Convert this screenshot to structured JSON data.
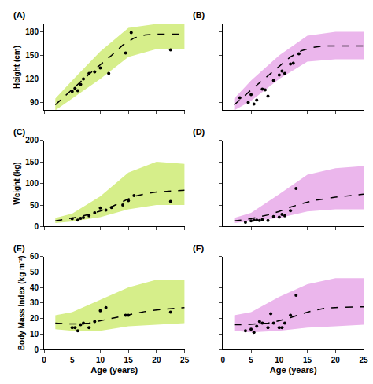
{
  "chart_data": [
    {
      "type": "scatter",
      "title": "(A)",
      "ylabel": "Height (cm)",
      "xlim": [
        0,
        25
      ],
      "xticks": [
        0,
        5,
        10,
        15,
        20,
        25
      ],
      "ylim": [
        80,
        190
      ],
      "yticks": [
        90,
        120,
        150,
        180
      ],
      "grid": false,
      "tick_labels": "y",
      "series": [
        {
          "type": "band",
          "color": "#d6ee8a",
          "x": [
            2,
            5,
            10,
            15,
            20,
            25
          ],
          "lower": [
            80,
            95,
            120,
            148,
            158,
            158
          ],
          "upper": [
            95,
            118,
            155,
            185,
            190,
            190
          ]
        },
        {
          "type": "line",
          "line_style": "dash",
          "color": "#000000",
          "x": [
            2,
            4,
            6,
            8,
            10,
            12,
            14,
            16,
            18,
            20,
            25
          ],
          "values": [
            87,
            100,
            113,
            126,
            138,
            150,
            163,
            172,
            176,
            177,
            177
          ]
        },
        {
          "type": "scatter",
          "marker": "circle",
          "color": "#000000",
          "x": [
            5,
            5.5,
            6,
            6.5,
            7,
            8,
            9,
            10,
            11.5,
            14.5,
            15.5,
            22.5
          ],
          "values": [
            104,
            108,
            105,
            113,
            120,
            127,
            129,
            134,
            127,
            153,
            179,
            157
          ]
        }
      ]
    },
    {
      "type": "scatter",
      "title": "(B)",
      "xlim": [
        0,
        25
      ],
      "xticks": [
        0,
        5,
        10,
        15,
        20,
        25
      ],
      "ylim": [
        80,
        190
      ],
      "yticks": [
        90,
        120,
        150,
        180
      ],
      "grid": false,
      "tick_labels": false,
      "series": [
        {
          "type": "band",
          "color": "#ebb6ec",
          "x": [
            2,
            5,
            10,
            15,
            20,
            25
          ],
          "lower": [
            80,
            92,
            120,
            142,
            145,
            145
          ],
          "upper": [
            95,
            118,
            150,
            175,
            180,
            180
          ]
        },
        {
          "type": "line",
          "line_style": "dash",
          "color": "#000000",
          "x": [
            2,
            4,
            6,
            8,
            10,
            12,
            14,
            16,
            18,
            20,
            25
          ],
          "values": [
            87,
            100,
            112,
            124,
            136,
            148,
            156,
            160,
            162,
            162,
            162
          ]
        },
        {
          "type": "scatter",
          "marker": "circle",
          "color": "#000000",
          "x": [
            3,
            4.5,
            5,
            5.5,
            6,
            7,
            7.5,
            8,
            9,
            10,
            10.5,
            11,
            12,
            12.5,
            13.5
          ],
          "values": [
            96,
            90,
            100,
            88,
            93,
            107,
            106,
            98,
            118,
            125,
            130,
            127,
            139,
            140,
            152
          ]
        }
      ]
    },
    {
      "type": "scatter",
      "title": "(C)",
      "ylabel": "Weight (kg)",
      "xlim": [
        0,
        25
      ],
      "xticks": [
        0,
        5,
        10,
        15,
        20,
        25
      ],
      "ylim": [
        0,
        200
      ],
      "yticks": [
        0,
        50,
        100,
        150,
        200
      ],
      "grid": false,
      "tick_labels": "y",
      "series": [
        {
          "type": "band",
          "color": "#d6ee8a",
          "x": [
            2,
            5,
            10,
            15,
            20,
            25
          ],
          "lower": [
            8,
            12,
            22,
            40,
            50,
            50
          ],
          "upper": [
            20,
            30,
            70,
            125,
            150,
            145
          ]
        },
        {
          "type": "line",
          "line_style": "dash",
          "color": "#000000",
          "x": [
            2,
            4,
            6,
            8,
            10,
            12,
            14,
            16,
            18,
            20,
            25
          ],
          "values": [
            13,
            17,
            22,
            28,
            36,
            46,
            58,
            70,
            76,
            80,
            84
          ]
        },
        {
          "type": "scatter",
          "marker": "circle",
          "color": "#000000",
          "x": [
            5,
            6,
            6.5,
            7,
            8,
            9,
            10,
            11,
            12,
            14,
            15,
            16,
            22.5
          ],
          "values": [
            18,
            15,
            19,
            21,
            25,
            32,
            43,
            38,
            44,
            50,
            60,
            72,
            58
          ]
        }
      ]
    },
    {
      "type": "scatter",
      "title": "(D)",
      "xlim": [
        0,
        25
      ],
      "xticks": [
        0,
        5,
        10,
        15,
        20,
        25
      ],
      "ylim": [
        0,
        200
      ],
      "yticks": [
        0,
        50,
        100,
        150,
        200
      ],
      "grid": false,
      "tick_labels": false,
      "series": [
        {
          "type": "band",
          "color": "#ebb6ec",
          "x": [
            2,
            5,
            10,
            15,
            20,
            25
          ],
          "lower": [
            8,
            12,
            20,
            35,
            40,
            40
          ],
          "upper": [
            20,
            32,
            75,
            120,
            135,
            140
          ]
        },
        {
          "type": "line",
          "line_style": "dash",
          "color": "#000000",
          "x": [
            2,
            4,
            6,
            8,
            10,
            12,
            14,
            16,
            18,
            20,
            25
          ],
          "values": [
            13,
            16,
            21,
            27,
            35,
            45,
            53,
            60,
            64,
            68,
            75
          ]
        },
        {
          "type": "scatter",
          "marker": "circle",
          "color": "#000000",
          "x": [
            4,
            5,
            5.5,
            6,
            6.5,
            7,
            8,
            9,
            10,
            10.5,
            11,
            12,
            13
          ],
          "values": [
            10,
            13,
            15,
            15,
            14,
            16,
            14,
            23,
            22,
            28,
            25,
            37,
            88
          ]
        }
      ]
    },
    {
      "type": "scatter",
      "title": "(E)",
      "xlabel": "Age (years)",
      "ylabel": "Body Mass Index (kg m⁻²)",
      "xlim": [
        0,
        25
      ],
      "xticks": [
        0,
        5,
        10,
        15,
        20,
        25
      ],
      "ylim": [
        0,
        60
      ],
      "yticks": [
        0,
        10,
        20,
        30,
        40,
        50,
        60
      ],
      "grid": false,
      "tick_labels": true,
      "series": [
        {
          "type": "band",
          "color": "#d6ee8a",
          "x": [
            2,
            5,
            10,
            15,
            20,
            25
          ],
          "lower": [
            13,
            12,
            12,
            15,
            16,
            17
          ],
          "upper": [
            22,
            24,
            32,
            40,
            45,
            45
          ]
        },
        {
          "type": "line",
          "line_style": "dash",
          "color": "#000000",
          "x": [
            2,
            4,
            6,
            8,
            10,
            12,
            14,
            16,
            18,
            20,
            25
          ],
          "values": [
            17,
            16.5,
            16.5,
            17,
            18.5,
            20,
            21.5,
            23,
            24.5,
            25.5,
            27
          ]
        },
        {
          "type": "scatter",
          "marker": "circle",
          "color": "#000000",
          "x": [
            5,
            5.5,
            6,
            6.5,
            7,
            8,
            9,
            10,
            11,
            14.5,
            15,
            22.5
          ],
          "values": [
            14,
            14,
            12,
            16,
            17,
            14,
            18,
            25,
            27,
            22,
            22,
            24
          ]
        }
      ]
    },
    {
      "type": "scatter",
      "title": "(F)",
      "xlabel": "Age (years)",
      "xlim": [
        0,
        25
      ],
      "xticks": [
        0,
        5,
        10,
        15,
        20,
        25
      ],
      "ylim": [
        0,
        60
      ],
      "yticks": [
        0,
        10,
        20,
        30,
        40,
        50,
        60
      ],
      "grid": false,
      "tick_labels": "x",
      "series": [
        {
          "type": "band",
          "color": "#ebb6ec",
          "x": [
            2,
            5,
            10,
            15,
            20,
            25
          ],
          "lower": [
            12,
            11,
            12,
            14,
            15,
            16
          ],
          "upper": [
            22,
            24,
            34,
            42,
            46,
            46
          ]
        },
        {
          "type": "line",
          "line_style": "dash",
          "color": "#000000",
          "x": [
            2,
            4,
            6,
            8,
            10,
            12,
            14,
            16,
            18,
            20,
            25
          ],
          "values": [
            16,
            16,
            16.5,
            17,
            18.5,
            20.5,
            23,
            25,
            26.5,
            27,
            27.5
          ]
        },
        {
          "type": "scatter",
          "marker": "circle",
          "color": "#000000",
          "x": [
            4,
            5,
            5.5,
            6,
            6.5,
            7,
            8,
            8.5,
            9,
            10,
            10.5,
            11,
            12,
            13
          ],
          "values": [
            12,
            13,
            11,
            15,
            18,
            17,
            14,
            23,
            17,
            14,
            14,
            17,
            22,
            35
          ]
        }
      ]
    }
  ]
}
